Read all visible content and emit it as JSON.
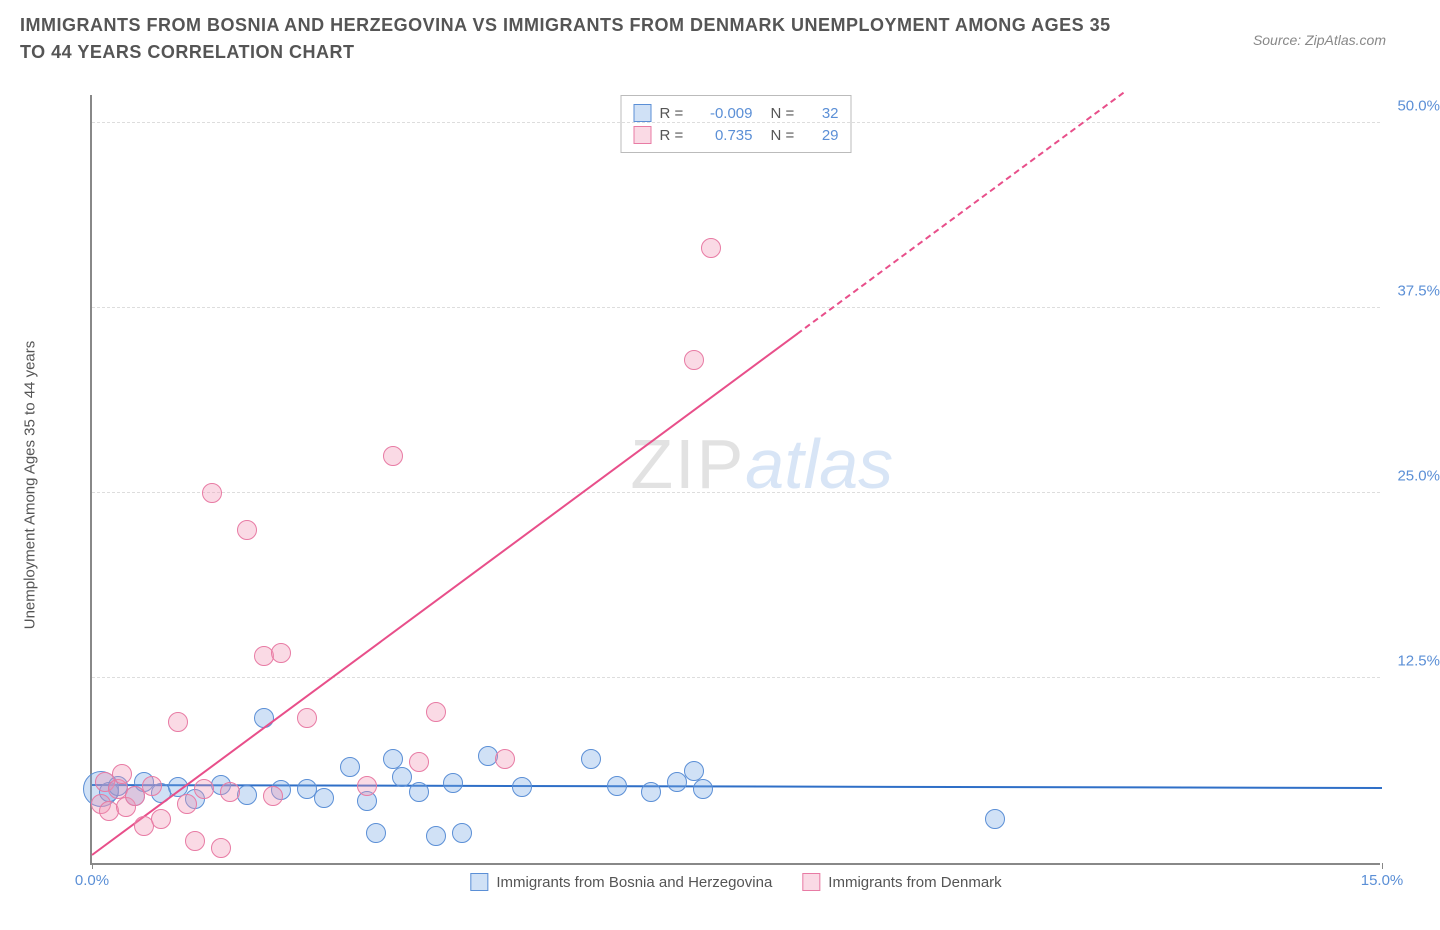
{
  "title": "IMMIGRANTS FROM BOSNIA AND HERZEGOVINA VS IMMIGRANTS FROM DENMARK UNEMPLOYMENT AMONG AGES 35 TO 44 YEARS CORRELATION CHART",
  "source": "Source: ZipAtlas.com",
  "y_axis_label": "Unemployment Among Ages 35 to 44 years",
  "watermark_a": "ZIP",
  "watermark_b": "atlas",
  "chart": {
    "type": "scatter",
    "xlim": [
      0,
      15
    ],
    "ylim": [
      0,
      52
    ],
    "x_ticks": [
      0,
      15
    ],
    "x_tick_labels": [
      "0.0%",
      "15.0%"
    ],
    "y_ticks": [
      12.5,
      25,
      37.5,
      50
    ],
    "y_tick_labels": [
      "12.5%",
      "25.0%",
      "37.5%",
      "50.0%"
    ],
    "background": "#ffffff",
    "grid_color": "#dddddd",
    "axis_color": "#888888",
    "tick_label_color": "#5b8fd6",
    "series": [
      {
        "id": "bosnia",
        "label": "Immigrants from Bosnia and Herzegovina",
        "fill": "rgba(120,170,230,0.35)",
        "stroke": "#5b8fd6",
        "r_value": "-0.009",
        "n_value": "32",
        "marker_radius": 10,
        "trend": {
          "x1": 0,
          "y1": 5.2,
          "x2": 15,
          "y2": 5.0,
          "color": "#2f6fc7",
          "width": 2,
          "dash_from_x": null
        },
        "points": [
          {
            "x": 0.1,
            "y": 5.0,
            "r": 18
          },
          {
            "x": 0.2,
            "y": 4.8
          },
          {
            "x": 0.3,
            "y": 5.2
          },
          {
            "x": 0.5,
            "y": 4.5
          },
          {
            "x": 0.6,
            "y": 5.5
          },
          {
            "x": 0.8,
            "y": 4.7
          },
          {
            "x": 1.0,
            "y": 5.1
          },
          {
            "x": 1.2,
            "y": 4.3
          },
          {
            "x": 1.5,
            "y": 5.3
          },
          {
            "x": 1.8,
            "y": 4.6
          },
          {
            "x": 2.0,
            "y": 9.8
          },
          {
            "x": 2.2,
            "y": 4.9
          },
          {
            "x": 2.5,
            "y": 5.0
          },
          {
            "x": 2.7,
            "y": 4.4
          },
          {
            "x": 3.0,
            "y": 6.5
          },
          {
            "x": 3.2,
            "y": 4.2
          },
          {
            "x": 3.3,
            "y": 2.0
          },
          {
            "x": 3.5,
            "y": 7.0
          },
          {
            "x": 3.6,
            "y": 5.8
          },
          {
            "x": 3.8,
            "y": 4.8
          },
          {
            "x": 4.0,
            "y": 1.8
          },
          {
            "x": 4.2,
            "y": 5.4
          },
          {
            "x": 4.3,
            "y": 2.0
          },
          {
            "x": 4.6,
            "y": 7.2
          },
          {
            "x": 5.0,
            "y": 5.1
          },
          {
            "x": 5.8,
            "y": 7.0
          },
          {
            "x": 6.1,
            "y": 5.2
          },
          {
            "x": 6.8,
            "y": 5.5
          },
          {
            "x": 7.0,
            "y": 6.2
          },
          {
            "x": 7.1,
            "y": 5.0
          },
          {
            "x": 10.5,
            "y": 3.0
          },
          {
            "x": 6.5,
            "y": 4.8
          }
        ]
      },
      {
        "id": "denmark",
        "label": "Immigrants from Denmark",
        "fill": "rgba(240,150,180,0.35)",
        "stroke": "#e87ba4",
        "r_value": "0.735",
        "n_value": "29",
        "marker_radius": 10,
        "trend": {
          "x1": 0,
          "y1": 0.5,
          "x2": 12,
          "y2": 52,
          "color": "#e84f8a",
          "width": 2,
          "dash_from_x": 8.2
        },
        "points": [
          {
            "x": 0.1,
            "y": 4.0
          },
          {
            "x": 0.15,
            "y": 5.5
          },
          {
            "x": 0.2,
            "y": 3.5
          },
          {
            "x": 0.3,
            "y": 5.0
          },
          {
            "x": 0.35,
            "y": 6.0
          },
          {
            "x": 0.4,
            "y": 3.8
          },
          {
            "x": 0.5,
            "y": 4.5
          },
          {
            "x": 0.6,
            "y": 2.5
          },
          {
            "x": 0.7,
            "y": 5.2
          },
          {
            "x": 0.8,
            "y": 3.0
          },
          {
            "x": 1.0,
            "y": 9.5
          },
          {
            "x": 1.1,
            "y": 4.0
          },
          {
            "x": 1.2,
            "y": 1.5
          },
          {
            "x": 1.3,
            "y": 5.0
          },
          {
            "x": 1.4,
            "y": 25.0
          },
          {
            "x": 1.5,
            "y": 1.0
          },
          {
            "x": 1.6,
            "y": 4.8
          },
          {
            "x": 1.8,
            "y": 22.5
          },
          {
            "x": 2.0,
            "y": 14.0
          },
          {
            "x": 2.1,
            "y": 4.5
          },
          {
            "x": 2.2,
            "y": 14.2
          },
          {
            "x": 2.5,
            "y": 9.8
          },
          {
            "x": 3.2,
            "y": 5.2
          },
          {
            "x": 3.5,
            "y": 27.5
          },
          {
            "x": 3.8,
            "y": 6.8
          },
          {
            "x": 4.0,
            "y": 10.2
          },
          {
            "x": 4.8,
            "y": 7.0
          },
          {
            "x": 7.0,
            "y": 34.0
          },
          {
            "x": 7.2,
            "y": 41.5
          }
        ]
      }
    ],
    "legend_top_labels": {
      "r": "R =",
      "n": "N ="
    }
  }
}
